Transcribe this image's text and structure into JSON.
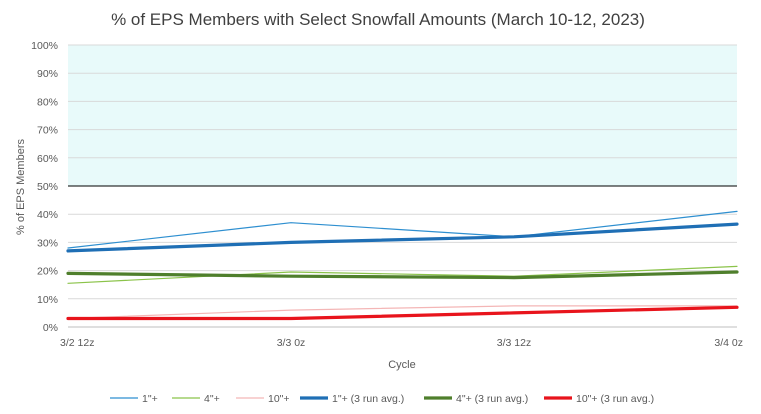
{
  "chart_data": {
    "type": "line",
    "title": "% of EPS Members with Select Snowfall Amounts (March 10-12, 2023)",
    "xlabel": "Cycle",
    "ylabel": "% of EPS Members",
    "categories": [
      "3/2 12z",
      "3/3 0z",
      "3/3 12z",
      "3/4 0z"
    ],
    "ylim": [
      0,
      100
    ],
    "yticks": [
      "0%",
      "10%",
      "20%",
      "30%",
      "40%",
      "50%",
      "60%",
      "70%",
      "80%",
      "90%",
      "100%"
    ],
    "shaded_region": {
      "from": 50,
      "to": 100,
      "color": "#e8fafa"
    },
    "threshold_line": {
      "value": 50,
      "color": "#000000"
    },
    "grid": true,
    "legend_position": "bottom",
    "series": [
      {
        "name": "1\"+",
        "values": [
          28,
          37,
          32,
          41
        ],
        "color": "#2e8fd0",
        "width": 1.2
      },
      {
        "name": "4\"+",
        "values": [
          15.5,
          19.5,
          18,
          21.5
        ],
        "color": "#8bc34a",
        "width": 1.2
      },
      {
        "name": "10\"+",
        "values": [
          3,
          6,
          7.5,
          7.5
        ],
        "color": "#f4b6b6",
        "width": 1.2
      },
      {
        "name": "1\"+ (3 run avg.)",
        "values": [
          27,
          30,
          32,
          36.5
        ],
        "color": "#1f6fb5",
        "width": 3.2
      },
      {
        "name": "4\"+ (3 run avg.)",
        "values": [
          19,
          18,
          17.5,
          19.5
        ],
        "color": "#4f7f2c",
        "width": 3.2
      },
      {
        "name": "10\"+ (3 run avg.)",
        "values": [
          3,
          3,
          5,
          7
        ],
        "color": "#e8141c",
        "width": 3.2
      }
    ]
  }
}
